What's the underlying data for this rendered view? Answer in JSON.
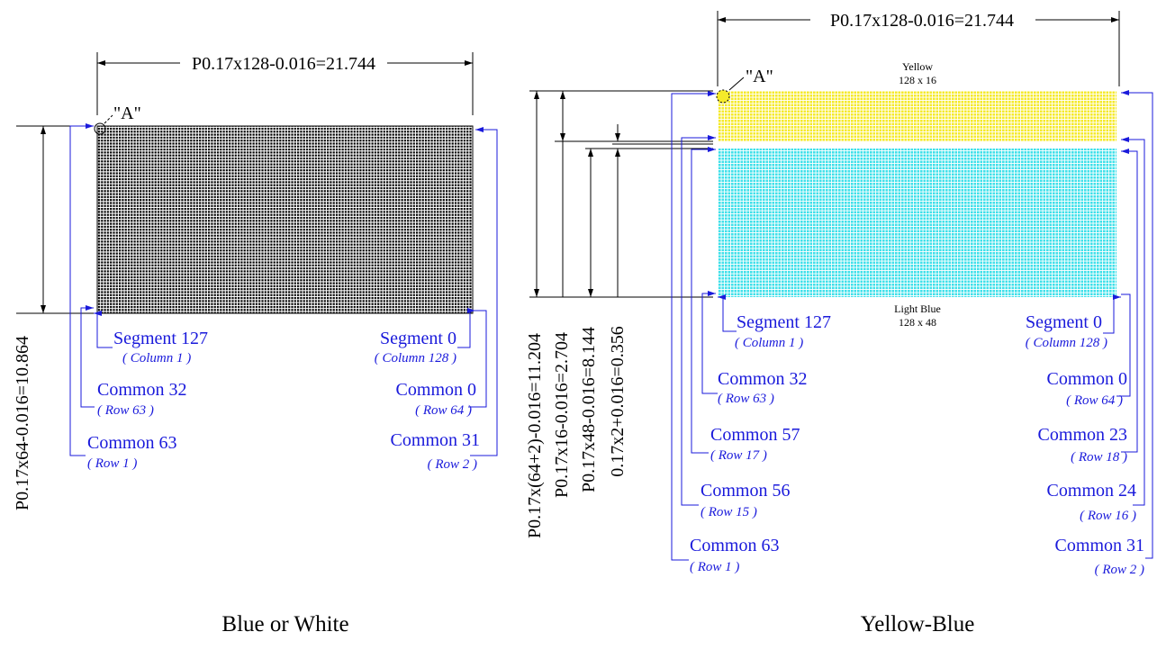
{
  "left": {
    "caption": "Blue or White",
    "top_dim": "P0.17x128-0.016=21.744",
    "side_dim": "P0.17x64-0.016=10.864",
    "point_label": "\"A\"",
    "colors": {
      "grid_fill": "#ffffff",
      "grid_line": "#000000"
    },
    "labels": {
      "seg127": "Segment 127",
      "seg127_sub": "( Column 1 )",
      "seg0": "Segment 0",
      "seg0_sub": "( Column 128 )",
      "com32": "Common 32",
      "com32_sub": "( Row 63 )",
      "com0": "Common 0",
      "com0_sub": "( Row 64 )",
      "com63": "Common 63",
      "com63_sub": "( Row 1 )",
      "com31": "Common 31",
      "com31_sub": "( Row 2 )"
    }
  },
  "right": {
    "caption": "Yellow-Blue",
    "top_dim": "P0.17x128-0.016=21.744",
    "point_label": "\"A\"",
    "yellow_label": "Yellow",
    "yellow_size": "128 x 16",
    "blue_label": "Light Blue",
    "blue_size": "128 x 48",
    "colors": {
      "yellow": "#f5ea2a",
      "light_blue": "#3fe0ea",
      "grid_line": "#ffffff"
    },
    "side_dims": [
      "P0.17x(64+2)-0.016=11.204",
      "P0.17x16-0.016=2.704",
      "P0.17x48-0.016=8.144",
      "0.17x2+0.016=0.356"
    ],
    "labels": {
      "seg127": "Segment 127",
      "seg127_sub": "( Column 1 )",
      "seg0": "Segment 0",
      "seg0_sub": "( Column 128 )",
      "com32": "Common 32",
      "com32_sub": "( Row 63 )",
      "com0": "Common 0",
      "com0_sub": "( Row 64 )",
      "com57": "Common 57",
      "com57_sub": "( Row 17 )",
      "com23": "Common 23",
      "com23_sub": "( Row 18 )",
      "com56": "Common 56",
      "com56_sub": "( Row 15 )",
      "com24": "Common 24",
      "com24_sub": "( Row 16 )",
      "com63": "Common 63",
      "com63_sub": "( Row 1 )",
      "com31": "Common 31",
      "com31_sub": "( Row 2 )"
    }
  }
}
